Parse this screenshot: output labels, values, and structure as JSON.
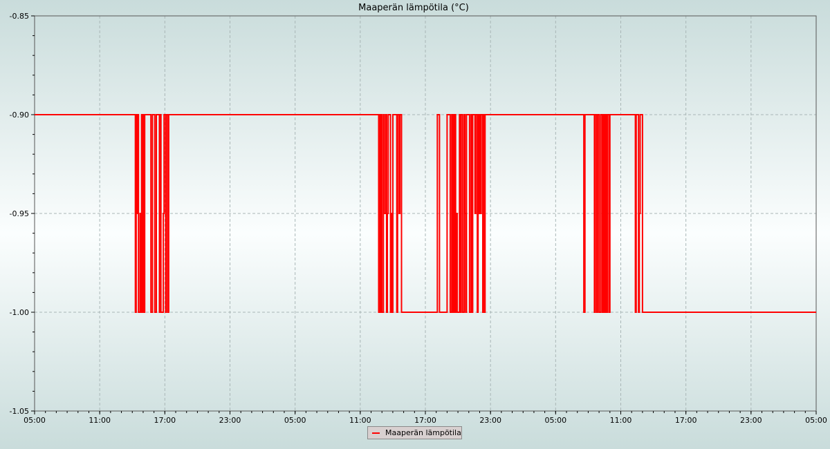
{
  "chart_data": {
    "type": "line",
    "title": "Maaperän lämpötila (°C)",
    "xlabel": "",
    "ylabel": "",
    "ylim": [
      -1.05,
      -0.85
    ],
    "yticks": [
      "-0.85",
      "-0.90",
      "-0.95",
      "-1.00",
      "-1.05"
    ],
    "ytick_values": [
      -0.85,
      -0.9,
      -0.95,
      -1.0,
      -1.05
    ],
    "xlim_hours": [
      0,
      72
    ],
    "xtick_labels": [
      "05:00",
      "11:00",
      "17:00",
      "23:00",
      "05:00",
      "11:00",
      "17:00",
      "23:00",
      "05:00",
      "11:00",
      "17:00",
      "23:00",
      "05:00"
    ],
    "grid": true,
    "legend_position": "bottom-center",
    "series": [
      {
        "name": "Maaperän lämpötila",
        "color": "#ff0000",
        "step_segments": [
          {
            "hours": [
              0.0,
              9.0
            ],
            "value": -0.9
          },
          {
            "hours": [
              9.0,
              12.5
            ],
            "value": "alternating -0.90/-1.00"
          },
          {
            "hours": [
              12.5,
              31.7
            ],
            "value": -0.9
          },
          {
            "hours": [
              31.7,
              33.8
            ],
            "value": "alternating -0.90/-1.00"
          },
          {
            "hours": [
              33.8,
              37.1
            ],
            "value": -1.0
          },
          {
            "hours": [
              37.1,
              37.3
            ],
            "value": -0.9
          },
          {
            "hours": [
              37.3,
              38.0
            ],
            "value": -1.0
          },
          {
            "hours": [
              38.0,
              41.5
            ],
            "value": "alternating -0.90/-1.00"
          },
          {
            "hours": [
              41.5,
              50.6
            ],
            "value": -0.9
          },
          {
            "hours": [
              50.6,
              50.7
            ],
            "value": -1.0
          },
          {
            "hours": [
              50.7,
              51.5
            ],
            "value": -0.9
          },
          {
            "hours": [
              51.5,
              53.0
            ],
            "value": "alternating -0.90/-1.00"
          },
          {
            "hours": [
              53.0,
              55.2
            ],
            "value": -0.9
          },
          {
            "hours": [
              55.2,
              56.0
            ],
            "value": "alternating -0.90/-1.00"
          },
          {
            "hours": [
              56.0,
              72.0
            ],
            "value": -1.0
          }
        ]
      }
    ]
  },
  "colors": {
    "line": "#ff0000",
    "grid": "#a9b6b6",
    "axis": "#555555"
  }
}
